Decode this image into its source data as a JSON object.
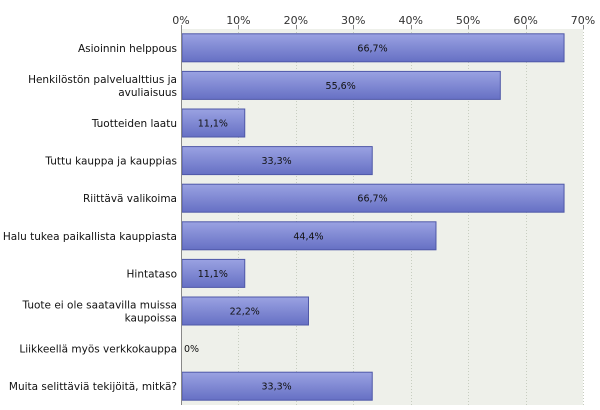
{
  "chart_data": {
    "type": "bar",
    "orientation": "horizontal",
    "xlim": [
      0,
      70
    ],
    "ticks": [
      0,
      10,
      20,
      30,
      40,
      50,
      60,
      70
    ],
    "tick_suffix": "%",
    "grid": true,
    "categories": [
      [
        "Asioinnin helppous"
      ],
      [
        "Henkilöstön palvelualttius ja",
        "avuliaisuus"
      ],
      [
        "Tuotteiden laatu"
      ],
      [
        "Tuttu kauppa ja kauppias"
      ],
      [
        "Riittävä valikoima"
      ],
      [
        "Halu tukea paikallista kauppiasta"
      ],
      [
        "Hintataso"
      ],
      [
        "Tuote ei ole saatavilla muissa",
        "kaupoissa"
      ],
      [
        "Liikkeellä myös verkkokauppa"
      ],
      [
        "Muita selittäviä tekijöitä, mitkä?"
      ]
    ],
    "values": [
      66.7,
      55.6,
      11.1,
      33.3,
      66.7,
      44.4,
      11.1,
      22.2,
      0,
      33.3
    ],
    "value_labels": [
      "66,7%",
      "55,6%",
      "11,1%",
      "33,3%",
      "66,7%",
      "44,4%",
      "11,1%",
      "22,2%",
      "0%",
      "33,3%"
    ],
    "colors": {
      "bar_fill_top": "#9aa2e2",
      "bar_fill_bottom": "#6670c4",
      "bar_stroke": "#4f58a8",
      "plot_bg": "#eef0ea",
      "grid": "#c7cdc0",
      "axis": "#888888"
    }
  }
}
